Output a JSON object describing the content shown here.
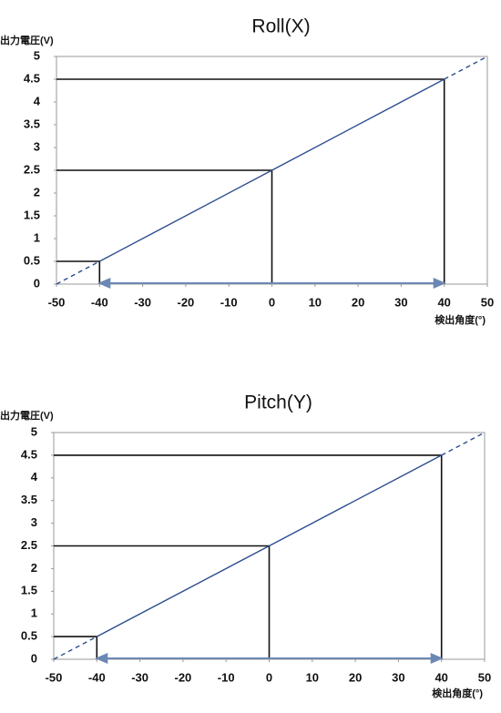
{
  "chart_data": [
    {
      "type": "line",
      "title": "Roll(X)",
      "y_label": "出力電圧(V)",
      "x_label": "検出角度(°)",
      "x": [
        -50,
        -40,
        0,
        40,
        50
      ],
      "series": [
        {
          "color": "#2b4d8f",
          "line_style": "solid",
          "drop_lines": true,
          "range_arrow": true,
          "values": [
            null,
            0.5,
            2.5,
            4.5,
            null
          ]
        },
        {
          "color": "#2b4d8f",
          "line_style": "dashed",
          "values": [
            0,
            0.5,
            null,
            4.5,
            5
          ]
        }
      ],
      "xlim": [
        -50,
        50
      ],
      "xticks": [
        -50,
        -40,
        -30,
        -20,
        -10,
        0,
        10,
        20,
        30,
        40,
        50
      ],
      "ylim": [
        0,
        5
      ],
      "yticks": [
        0,
        0.5,
        1,
        1.5,
        2,
        2.5,
        3,
        3.5,
        4,
        4.5,
        5
      ],
      "grid": false
    },
    {
      "type": "line",
      "title": "Pitch(Y)",
      "y_label": "出力電圧(V)",
      "x_label": "検出角度(°)",
      "x": [
        -50,
        -40,
        0,
        40,
        50
      ],
      "series": [
        {
          "color": "#2b4d8f",
          "line_style": "solid",
          "drop_lines": true,
          "range_arrow": true,
          "values": [
            null,
            0.5,
            2.5,
            4.5,
            null
          ]
        },
        {
          "color": "#2b4d8f",
          "line_style": "dashed",
          "values": [
            0,
            0.5,
            null,
            4.5,
            5
          ]
        }
      ],
      "xlim": [
        -50,
        50
      ],
      "xticks": [
        -50,
        -40,
        -30,
        -20,
        -10,
        0,
        10,
        20,
        30,
        40,
        50
      ],
      "ylim": [
        0,
        5
      ],
      "yticks": [
        0,
        0.5,
        1,
        1.5,
        2,
        2.5,
        3,
        3.5,
        4,
        4.5,
        5
      ],
      "grid": false
    }
  ]
}
